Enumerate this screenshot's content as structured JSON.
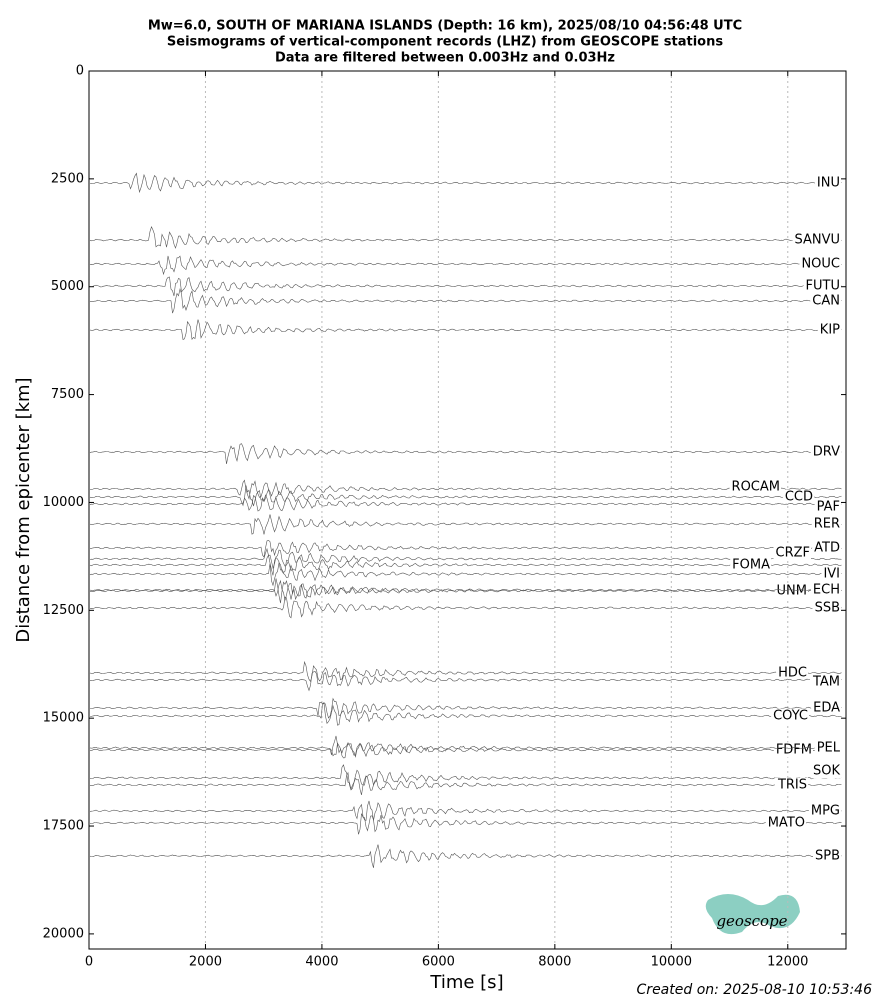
{
  "chart_data": {
    "type": "seismogram",
    "title": "Mw=6.0, SOUTH OF MARIANA ISLANDS (Depth: 16 km), 2025/08/10 04:56:48 UTC",
    "subtitle": "Seismograms of vertical-component records (LHZ) from GEOSCOPE stations",
    "subtitle2": "Data are filtered between 0.003Hz and 0.03Hz",
    "x_label": "Time [s]",
    "y_label": "Distance from epicenter [km]",
    "footer": "Created on: 2025-08-10 10:53:46",
    "logo": "geoscope",
    "xlim": [
      0,
      13000
    ],
    "xticks": [
      0,
      2000,
      4000,
      6000,
      8000,
      10000,
      12000
    ],
    "ylim": [
      20350,
      0
    ],
    "yticks": [
      0,
      2500,
      5000,
      7500,
      10000,
      12500,
      15000,
      17500,
      20000
    ],
    "grid": true,
    "color": "#555555",
    "stations": [
      "INU",
      "SANVU",
      "NOUC",
      "FUTU",
      "CAN",
      "KIP",
      "DRV",
      "ROCAM",
      "CCD",
      "PAF",
      "RER",
      "ATD",
      "CRZF",
      "FOMA",
      "IVI",
      "UNM",
      "ECH",
      "SSB",
      "HDC",
      "TAM",
      "EDA",
      "COYC",
      "FDFM",
      "PEL",
      "SOK",
      "TRIS",
      "MPG",
      "MATO",
      "SPB"
    ],
    "distances": [
      2596,
      3917,
      4473,
      4983,
      5330,
      6002,
      8830,
      9687,
      9873,
      10035,
      10498,
      11054,
      11309,
      11448,
      11657,
      12051,
      12030,
      12445,
      13951,
      14114,
      14763,
      14948,
      15736,
      15689,
      16385,
      16547,
      17150,
      17428,
      18192
    ]
  }
}
